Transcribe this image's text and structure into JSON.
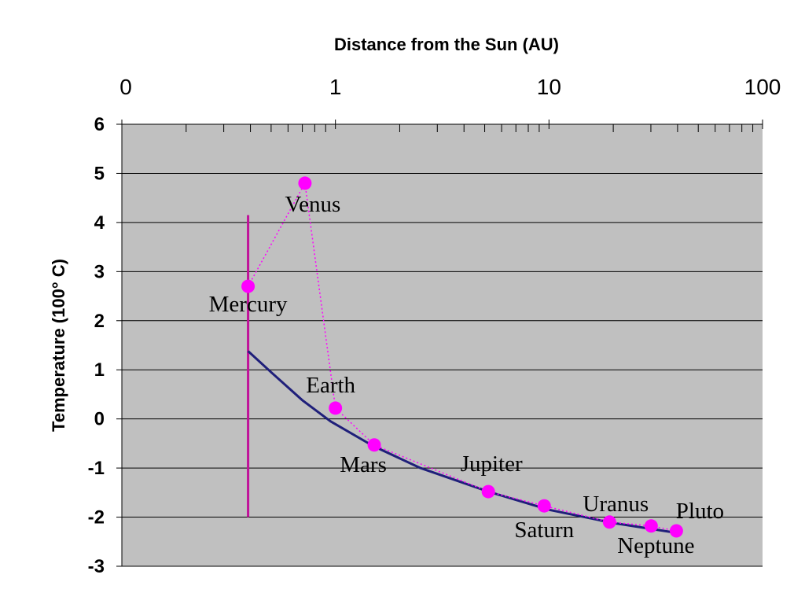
{
  "chart_data": {
    "type": "scatter",
    "xlabel": "Distance from the Sun (AU)",
    "ylabel": "Temperature (100° C)",
    "xscale": "log",
    "xaxis_position": "top",
    "xlim": [
      0.1,
      100
    ],
    "ylim": [
      -3,
      6
    ],
    "x_tick_labels": [
      {
        "value": 0.1,
        "label": "0"
      },
      {
        "value": 1,
        "label": "1"
      },
      {
        "value": 10,
        "label": "10"
      },
      {
        "value": 100,
        "label": "100"
      }
    ],
    "y_ticks": [
      -3,
      -2,
      -1,
      0,
      1,
      2,
      3,
      4,
      5,
      6
    ],
    "grid": "horizontal",
    "plot_background": "#c0c0c0",
    "series": [
      {
        "style": "markers-dotted-line",
        "color": "#ff00ff",
        "points": [
          {
            "label": "Mercury",
            "x": 0.39,
            "y": 2.7
          },
          {
            "label": "Venus",
            "x": 0.72,
            "y": 4.8
          },
          {
            "label": "Earth",
            "x": 1.0,
            "y": 0.22
          },
          {
            "label": "Mars",
            "x": 1.52,
            "y": -0.53
          },
          {
            "label": "Jupiter",
            "x": 5.2,
            "y": -1.48
          },
          {
            "label": "Saturn",
            "x": 9.5,
            "y": -1.77
          },
          {
            "label": "Uranus",
            "x": 19.2,
            "y": -2.1
          },
          {
            "label": "Neptune",
            "x": 30.1,
            "y": -2.18
          },
          {
            "label": "Pluto",
            "x": 39.5,
            "y": -2.28
          }
        ]
      },
      {
        "style": "solid-line",
        "color": "#1f1f7a",
        "x": [
          0.39,
          0.5,
          0.7,
          0.95,
          1.5,
          2.5,
          5.2,
          10,
          20,
          39.5
        ],
        "y": [
          1.38,
          0.95,
          0.38,
          -0.05,
          -0.55,
          -1.0,
          -1.48,
          -1.85,
          -2.12,
          -2.32
        ]
      }
    ],
    "reference_line": {
      "color": "#c0129a",
      "x": 0.39,
      "y_from": -2.0,
      "y_to": 4.15
    }
  }
}
